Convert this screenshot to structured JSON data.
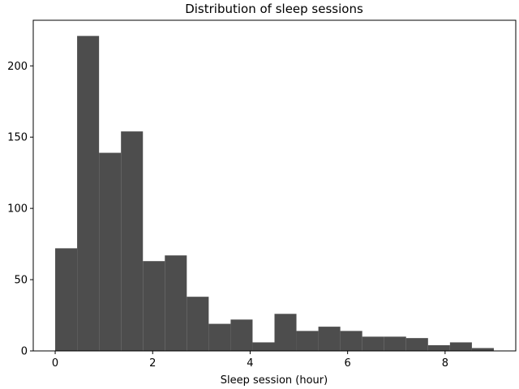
{
  "chart_data": {
    "type": "bar",
    "title": "Distribution of sleep sessions",
    "xlabel": "Sleep session (hour)",
    "ylabel": "",
    "xlim": [
      -0.45,
      9.45
    ],
    "ylim": [
      0,
      232
    ],
    "bin_edges": [
      0,
      0.45,
      0.9,
      1.35,
      1.8,
      2.25,
      2.7,
      3.15,
      3.6,
      4.05,
      4.5,
      4.95,
      5.4,
      5.85,
      6.3,
      6.75,
      7.2,
      7.65,
      8.1,
      8.55,
      9.0
    ],
    "values": [
      72,
      221,
      139,
      154,
      63,
      67,
      38,
      19,
      22,
      6,
      26,
      14,
      17,
      14,
      10,
      10,
      9,
      4,
      6,
      2
    ],
    "xticks": [
      0,
      2,
      4,
      6,
      8
    ],
    "xtick_labels": [
      "0",
      "2",
      "4",
      "6",
      "8"
    ],
    "yticks": [
      0,
      50,
      100,
      150,
      200
    ],
    "ytick_labels": [
      "0",
      "50",
      "100",
      "150",
      "200"
    ],
    "bar_color": "#4d4d4d",
    "grid": false,
    "legend": "none"
  }
}
